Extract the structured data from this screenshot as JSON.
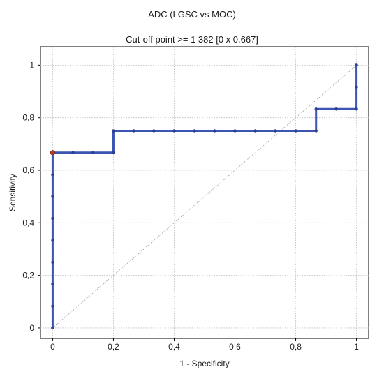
{
  "chart_data": {
    "type": "line",
    "title": "ADC (LGSC vs MOC)",
    "subtitle": "Cut-off point >= 1 382 [0 x 0.667]",
    "xlabel": "1 - Specificity",
    "ylabel": "Sensitivity",
    "xlim": [
      -0.04,
      1.04
    ],
    "ylim": [
      -0.04,
      1.07
    ],
    "x_ticks": [
      0,
      0.2,
      0.4,
      0.6,
      0.8,
      1
    ],
    "x_tick_labels": [
      "0",
      "0,2",
      "0,4",
      "0,6",
      "0,8",
      "1"
    ],
    "y_ticks": [
      0,
      0.2,
      0.4,
      0.6,
      0.8,
      1
    ],
    "y_tick_labels": [
      "0",
      "0,2",
      "0,4",
      "0,6",
      "0,8",
      "1"
    ],
    "grid": true,
    "series": [
      {
        "color": "#3a55b4",
        "x": [
          0,
          0,
          0,
          0,
          0,
          0,
          0,
          0,
          0,
          0.067,
          0.133,
          0.2,
          0.2,
          0.267,
          0.333,
          0.4,
          0.467,
          0.533,
          0.6,
          0.667,
          0.733,
          0.8,
          0.867,
          0.867,
          0.933,
          1,
          1,
          1
        ],
        "y": [
          0,
          0.083,
          0.167,
          0.25,
          0.333,
          0.417,
          0.5,
          0.583,
          0.667,
          0.667,
          0.667,
          0.667,
          0.75,
          0.75,
          0.75,
          0.75,
          0.75,
          0.75,
          0.75,
          0.75,
          0.75,
          0.75,
          0.75,
          0.833,
          0.833,
          0.833,
          0.917,
          1
        ]
      },
      {
        "color": "#999999",
        "x": [
          0,
          1
        ],
        "y": [
          0,
          1
        ]
      }
    ],
    "cutoff_point": {
      "x": 0,
      "y": 0.667,
      "color": "#c0392b"
    }
  }
}
